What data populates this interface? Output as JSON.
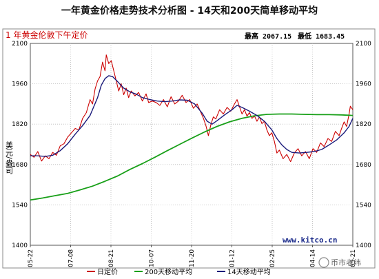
{
  "chart_data": {
    "type": "line",
    "title": "一年黄金价格走势技术分析图 - 14天和200天简单移动平均",
    "subtitle": "1 年黄金伦敦下午定价",
    "high_label": "最高 2067.15",
    "low_label": "最低 1683.45",
    "ylabel": "美元/盎司",
    "ylim": [
      1400,
      2100
    ],
    "yticks": [
      "1400",
      "1540",
      "1680",
      "1820",
      "1960",
      "2100"
    ],
    "xtick_labels": [
      "05-22",
      "07-08",
      "08-21",
      "10-07",
      "11-20",
      "01-12",
      "02-25",
      "04-14",
      "05-21"
    ],
    "grid": true,
    "legend_position": "bottom",
    "watermark": "www.kitco.cn",
    "brand": "币市老纬",
    "colors": {
      "daily": "#cc0000",
      "ma200": "#19a019",
      "ma14": "#1a1a7a",
      "grid": "#bbbbbb"
    },
    "series": [
      {
        "name": "日定价",
        "points": [
          [
            0,
            1715
          ],
          [
            3,
            1705
          ],
          [
            6,
            1725
          ],
          [
            9,
            1692
          ],
          [
            12,
            1710
          ],
          [
            15,
            1700
          ],
          [
            18,
            1722
          ],
          [
            21,
            1712
          ],
          [
            24,
            1745
          ],
          [
            27,
            1752
          ],
          [
            30,
            1775
          ],
          [
            33,
            1790
          ],
          [
            36,
            1805
          ],
          [
            39,
            1800
          ],
          [
            42,
            1840
          ],
          [
            45,
            1860
          ],
          [
            48,
            1905
          ],
          [
            50,
            1890
          ],
          [
            52,
            1942
          ],
          [
            54,
            1970
          ],
          [
            56,
            1985
          ],
          [
            58,
            2035
          ],
          [
            60,
            2005
          ],
          [
            61,
            2060
          ],
          [
            63,
            2030
          ],
          [
            65,
            2040
          ],
          [
            67,
            2005
          ],
          [
            69,
            1970
          ],
          [
            71,
            1935
          ],
          [
            73,
            1960
          ],
          [
            75,
            1922
          ],
          [
            77,
            1945
          ],
          [
            79,
            1912
          ],
          [
            81,
            1935
          ],
          [
            84,
            1918
          ],
          [
            87,
            1930
          ],
          [
            90,
            1900
          ],
          [
            93,
            1925
          ],
          [
            95,
            1895
          ],
          [
            98,
            1900
          ],
          [
            101,
            1895
          ],
          [
            104,
            1885
          ],
          [
            107,
            1905
          ],
          [
            110,
            1880
          ],
          [
            113,
            1915
          ],
          [
            116,
            1890
          ],
          [
            119,
            1900
          ],
          [
            122,
            1920
          ],
          [
            125,
            1895
          ],
          [
            128,
            1905
          ],
          [
            131,
            1875
          ],
          [
            134,
            1890
          ],
          [
            137,
            1860
          ],
          [
            139,
            1840
          ],
          [
            141,
            1815
          ],
          [
            143,
            1780
          ],
          [
            145,
            1818
          ],
          [
            147,
            1845
          ],
          [
            149,
            1838
          ],
          [
            152,
            1870
          ],
          [
            155,
            1855
          ],
          [
            158,
            1878
          ],
          [
            161,
            1865
          ],
          [
            164,
            1890
          ],
          [
            166,
            1905
          ],
          [
            168,
            1880
          ],
          [
            170,
            1855
          ],
          [
            172,
            1870
          ],
          [
            174,
            1848
          ],
          [
            176,
            1860
          ],
          [
            178,
            1840
          ],
          [
            180,
            1848
          ],
          [
            182,
            1830
          ],
          [
            184,
            1845
          ],
          [
            186,
            1822
          ],
          [
            188,
            1830
          ],
          [
            190,
            1800
          ],
          [
            192,
            1780
          ],
          [
            194,
            1790
          ],
          [
            196,
            1760
          ],
          [
            198,
            1720
          ],
          [
            200,
            1730
          ],
          [
            203,
            1700
          ],
          [
            206,
            1715
          ],
          [
            209,
            1690
          ],
          [
            212,
            1720
          ],
          [
            215,
            1735
          ],
          [
            218,
            1710
          ],
          [
            221,
            1725
          ],
          [
            224,
            1700
          ],
          [
            227,
            1735
          ],
          [
            230,
            1722
          ],
          [
            233,
            1755
          ],
          [
            236,
            1742
          ],
          [
            239,
            1770
          ],
          [
            242,
            1760
          ],
          [
            245,
            1795
          ],
          [
            248,
            1780
          ],
          [
            250,
            1805
          ],
          [
            252,
            1828
          ],
          [
            254,
            1812
          ],
          [
            256,
            1855
          ],
          [
            257,
            1882
          ],
          [
            259,
            1870
          ]
        ]
      },
      {
        "name": "200天移动平均",
        "points": [
          [
            0,
            1557
          ],
          [
            10,
            1564
          ],
          [
            20,
            1572
          ],
          [
            30,
            1580
          ],
          [
            40,
            1592
          ],
          [
            50,
            1605
          ],
          [
            60,
            1622
          ],
          [
            70,
            1640
          ],
          [
            80,
            1663
          ],
          [
            90,
            1683
          ],
          [
            100,
            1705
          ],
          [
            110,
            1728
          ],
          [
            120,
            1750
          ],
          [
            130,
            1772
          ],
          [
            140,
            1793
          ],
          [
            150,
            1812
          ],
          [
            160,
            1828
          ],
          [
            170,
            1840
          ],
          [
            180,
            1849
          ],
          [
            190,
            1854
          ],
          [
            200,
            1855
          ],
          [
            210,
            1855
          ],
          [
            220,
            1854
          ],
          [
            230,
            1853
          ],
          [
            240,
            1853
          ],
          [
            250,
            1852
          ],
          [
            259,
            1850
          ]
        ]
      },
      {
        "name": "14天移动平均",
        "points": [
          [
            0,
            1710
          ],
          [
            6,
            1710
          ],
          [
            12,
            1708
          ],
          [
            18,
            1712
          ],
          [
            24,
            1728
          ],
          [
            30,
            1752
          ],
          [
            36,
            1785
          ],
          [
            42,
            1815
          ],
          [
            48,
            1850
          ],
          [
            54,
            1912
          ],
          [
            57,
            1955
          ],
          [
            60,
            1978
          ],
          [
            63,
            1988
          ],
          [
            66,
            1985
          ],
          [
            70,
            1968
          ],
          [
            75,
            1945
          ],
          [
            80,
            1932
          ],
          [
            85,
            1924
          ],
          [
            90,
            1912
          ],
          [
            96,
            1905
          ],
          [
            102,
            1900
          ],
          [
            108,
            1898
          ],
          [
            114,
            1900
          ],
          [
            120,
            1904
          ],
          [
            126,
            1903
          ],
          [
            132,
            1890
          ],
          [
            138,
            1858
          ],
          [
            142,
            1830
          ],
          [
            146,
            1820
          ],
          [
            150,
            1832
          ],
          [
            156,
            1852
          ],
          [
            162,
            1870
          ],
          [
            166,
            1885
          ],
          [
            170,
            1878
          ],
          [
            176,
            1865
          ],
          [
            182,
            1850
          ],
          [
            188,
            1830
          ],
          [
            194,
            1800
          ],
          [
            198,
            1770
          ],
          [
            202,
            1748
          ],
          [
            206,
            1732
          ],
          [
            210,
            1722
          ],
          [
            216,
            1720
          ],
          [
            222,
            1722
          ],
          [
            228,
            1725
          ],
          [
            234,
            1732
          ],
          [
            240,
            1748
          ],
          [
            246,
            1765
          ],
          [
            252,
            1790
          ],
          [
            256,
            1812
          ],
          [
            259,
            1840
          ]
        ]
      }
    ]
  }
}
